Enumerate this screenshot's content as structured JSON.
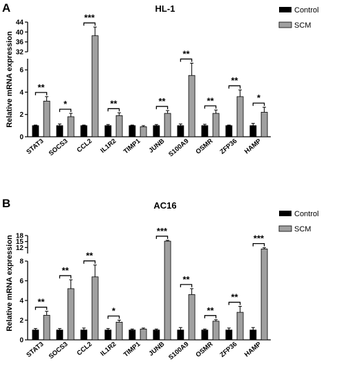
{
  "chart_data": [
    {
      "type": "bar",
      "panel": "A",
      "title": "HL-1",
      "ylabel": "Relative mRNA expression",
      "categories": [
        "STAT3",
        "SOCS3",
        "CCL2",
        "IL1R2",
        "TIMP1",
        "JUNB",
        "S100A9",
        "OSMR",
        "ZFP36",
        "HAMP"
      ],
      "series": [
        {
          "name": "Control",
          "color": "#000000",
          "values": [
            1.0,
            1.0,
            1.0,
            1.0,
            1.0,
            1.0,
            1.0,
            1.0,
            1.0,
            1.0
          ],
          "errors": [
            0.05,
            0.15,
            0.05,
            0.1,
            0.05,
            0.1,
            0.15,
            0.12,
            0.05,
            0.2
          ]
        },
        {
          "name": "SCM",
          "color": "#a0a0a0",
          "values": [
            3.2,
            1.8,
            38.5,
            1.9,
            0.9,
            2.1,
            5.5,
            2.1,
            3.6,
            2.2
          ],
          "errors": [
            0.4,
            0.3,
            3.5,
            0.25,
            0.1,
            0.25,
            1.1,
            0.3,
            0.6,
            0.45
          ]
        }
      ],
      "significance": [
        "**",
        "*",
        "***",
        "**",
        "",
        "**",
        "**",
        "**",
        "**",
        "*"
      ],
      "yticks": [
        "0",
        "2",
        "4",
        "6",
        "32",
        "36",
        "40",
        "44"
      ],
      "ylim_lower": [
        0,
        7
      ],
      "ylim_upper": [
        32,
        44
      ],
      "legend_position": "top-right"
    },
    {
      "type": "bar",
      "panel": "B",
      "title": "AC16",
      "ylabel": "Relative mRNA expression",
      "categories": [
        "STAT3",
        "SOCS3",
        "CCL2",
        "IL1R2",
        "TIMP1",
        "JUNB",
        "S100A9",
        "OSMR",
        "ZFP36",
        "HAMP"
      ],
      "series": [
        {
          "name": "Control",
          "color": "#000000",
          "values": [
            1.0,
            1.0,
            1.0,
            1.0,
            1.0,
            1.0,
            1.0,
            1.0,
            1.0,
            1.0
          ],
          "errors": [
            0.15,
            0.15,
            0.2,
            0.15,
            0.1,
            0.1,
            0.25,
            0.1,
            0.2,
            0.25
          ]
        },
        {
          "name": "SCM",
          "color": "#a0a0a0",
          "values": [
            2.5,
            5.2,
            6.4,
            1.8,
            1.1,
            15.2,
            4.6,
            1.9,
            2.8,
            11.3
          ],
          "errors": [
            0.4,
            0.9,
            1.2,
            0.2,
            0.1,
            0.4,
            0.6,
            0.15,
            0.6,
            0.6
          ]
        }
      ],
      "significance": [
        "**",
        "**",
        "**",
        "*",
        "",
        "***",
        "**",
        "**",
        "**",
        "***"
      ],
      "yticks": [
        "0",
        "2",
        "4",
        "6",
        "8",
        "12",
        "15",
        "18"
      ],
      "ylim_lower": [
        0,
        8
      ],
      "ylim_upper": [
        9,
        18
      ],
      "legend_position": "top-right"
    }
  ]
}
